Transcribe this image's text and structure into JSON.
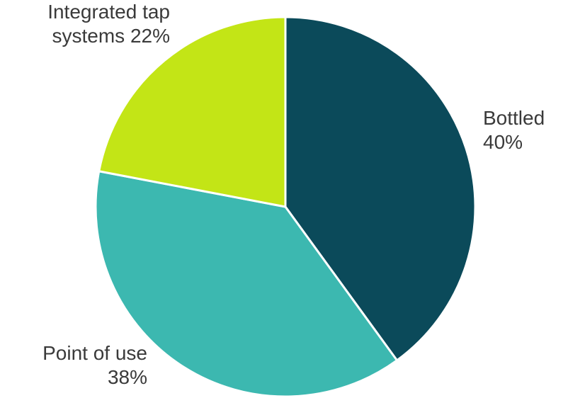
{
  "chart_data": {
    "type": "pie",
    "title": "",
    "slices": [
      {
        "name": "Bottled",
        "value": 40,
        "value_label": "40%",
        "color": "#0b4a5a"
      },
      {
        "name": "Point of use",
        "value": 38,
        "value_label": "38%",
        "color": "#3cb8b0"
      },
      {
        "name": "Integrated tap systems",
        "value": 22,
        "value_label": "22%",
        "color": "#c3e516"
      }
    ],
    "labels": {
      "bottled": {
        "line1": "Bottled",
        "line2": "40%"
      },
      "pou": {
        "line1": "Point of use",
        "line2": "38%"
      },
      "integrated": {
        "line1": "Integrated tap",
        "line2": "systems 22%"
      }
    },
    "start_angle": "12 o'clock",
    "direction": "clockwise",
    "legend": "none"
  }
}
